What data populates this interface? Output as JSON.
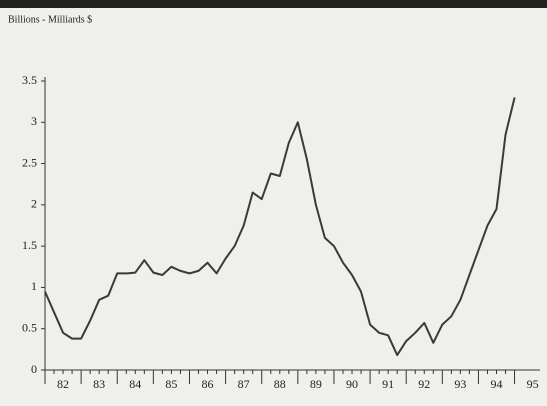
{
  "chart_data": {
    "type": "line",
    "title": "Billions - Milliards $",
    "categories": [
      "82",
      null,
      null,
      null,
      "83",
      null,
      null,
      null,
      "84",
      null,
      null,
      null,
      "85",
      null,
      null,
      null,
      "86",
      null,
      null,
      null,
      "87",
      null,
      null,
      null,
      "88",
      null,
      null,
      null,
      "89",
      null,
      null,
      null,
      "90",
      null,
      null,
      null,
      "91",
      null,
      null,
      null,
      "92",
      null,
      null,
      null,
      "93",
      null,
      null,
      null,
      "94",
      null,
      null,
      null,
      "95"
    ],
    "series": [
      {
        "name": null,
        "color": "#3a3a3a",
        "values": [
          0.95,
          0.7,
          0.45,
          0.38,
          0.38,
          0.6,
          0.85,
          0.9,
          1.17,
          1.17,
          1.18,
          1.33,
          1.18,
          1.15,
          1.25,
          1.2,
          1.17,
          1.2,
          1.3,
          1.17,
          1.35,
          1.5,
          1.75,
          2.15,
          2.07,
          2.38,
          2.35,
          2.75,
          3.0,
          2.55,
          2.0,
          1.6,
          1.5,
          1.3,
          1.15,
          0.95,
          0.55,
          0.45,
          0.42,
          0.18,
          0.35,
          0.45,
          0.57,
          0.33,
          0.55,
          0.65,
          0.85,
          1.15,
          1.45,
          1.75,
          1.95,
          2.85,
          3.3
        ]
      }
    ],
    "ylim": [
      0,
      3.5
    ],
    "yticks": [
      0,
      0.5,
      1,
      1.5,
      2,
      2.5,
      3,
      3.5
    ],
    "grid": false
  }
}
